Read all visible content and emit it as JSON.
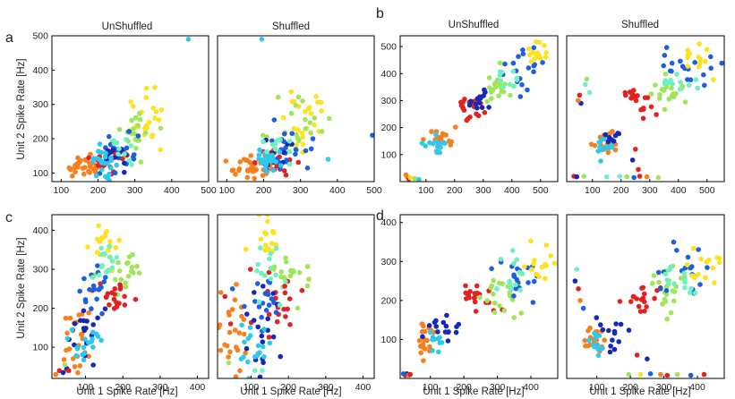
{
  "figure": {
    "panel_labels": [
      "a",
      "b",
      "c",
      "d"
    ],
    "column_titles": [
      "UnShuffled",
      "Shuffled"
    ],
    "xlabel": "Unit 1 Spike Rate [Hz]",
    "ylabel": "Unit 2 Spike Rate [Hz]"
  },
  "chart_data": [
    {
      "id": "a-unshuffled",
      "type": "scatter",
      "title": "UnShuffled",
      "xlim": [
        75,
        500
      ],
      "ylim": [
        75,
        500
      ],
      "xticks": [
        100,
        200,
        300,
        400,
        500
      ],
      "yticks": [
        100,
        200,
        300,
        400,
        500
      ],
      "clusters": [
        {
          "color": "#f77f1e",
          "cx": 165,
          "cy": 118,
          "sx": 30,
          "sy": 15,
          "n": 34
        },
        {
          "color": "#ffe11f",
          "cx": 330,
          "cy": 270,
          "sx": 30,
          "sy": 45,
          "n": 24
        },
        {
          "color": "#9fe55a",
          "cx": 300,
          "cy": 225,
          "sx": 30,
          "sy": 35,
          "n": 22
        },
        {
          "color": "#e12220",
          "cx": 235,
          "cy": 140,
          "sx": 25,
          "sy": 18,
          "n": 22
        },
        {
          "color": "#1d5fe0",
          "cx": 270,
          "cy": 160,
          "sx": 25,
          "sy": 30,
          "n": 20
        },
        {
          "color": "#1429b8",
          "cx": 250,
          "cy": 150,
          "sx": 25,
          "sy": 25,
          "n": 12
        },
        {
          "color": "#2ec8ee",
          "cx": 215,
          "cy": 135,
          "sx": 18,
          "sy": 18,
          "n": 24
        },
        {
          "color": "#6ef0c0",
          "cx": 250,
          "cy": 180,
          "sx": 25,
          "sy": 30,
          "n": 10
        }
      ],
      "outliers": [
        [
          445,
          490,
          "#2ec8ee"
        ]
      ]
    },
    {
      "id": "a-shuffled",
      "type": "scatter",
      "title": "Shuffled",
      "xlim": [
        75,
        500
      ],
      "ylim": [
        75,
        500
      ],
      "xticks": [
        100,
        200,
        300,
        400,
        500
      ],
      "yticks": [],
      "clusters": [
        {
          "color": "#f77f1e",
          "cx": 165,
          "cy": 120,
          "sx": 30,
          "sy": 18,
          "n": 34
        },
        {
          "color": "#ffe11f",
          "cx": 325,
          "cy": 265,
          "sx": 30,
          "sy": 45,
          "n": 24
        },
        {
          "color": "#9fe55a",
          "cx": 300,
          "cy": 230,
          "sx": 35,
          "sy": 40,
          "n": 22
        },
        {
          "color": "#e12220",
          "cx": 235,
          "cy": 140,
          "sx": 25,
          "sy": 20,
          "n": 22
        },
        {
          "color": "#1d5fe0",
          "cx": 260,
          "cy": 160,
          "sx": 30,
          "sy": 30,
          "n": 20
        },
        {
          "color": "#1429b8",
          "cx": 240,
          "cy": 150,
          "sx": 25,
          "sy": 25,
          "n": 12
        },
        {
          "color": "#2ec8ee",
          "cx": 210,
          "cy": 140,
          "sx": 20,
          "sy": 20,
          "n": 24
        },
        {
          "color": "#6ef0c0",
          "cx": 250,
          "cy": 175,
          "sx": 25,
          "sy": 30,
          "n": 10
        }
      ],
      "outliers": [
        [
          195,
          490,
          "#2ec8ee"
        ],
        [
          495,
          210,
          "#1d5fe0"
        ],
        [
          375,
          140,
          "#2ec8ee"
        ]
      ]
    },
    {
      "id": "b-unshuffled",
      "type": "scatter",
      "title": "UnShuffled",
      "xlim": [
        10,
        560
      ],
      "ylim": [
        0,
        540
      ],
      "xticks": [
        100,
        200,
        300,
        400,
        500
      ],
      "yticks": [
        100,
        200,
        300,
        400,
        500
      ],
      "clusters": [
        {
          "color": "#f77f1e",
          "cx": 150,
          "cy": 155,
          "sx": 22,
          "sy": 20,
          "n": 22
        },
        {
          "color": "#e12220",
          "cx": 255,
          "cy": 280,
          "sx": 25,
          "sy": 25,
          "n": 20
        },
        {
          "color": "#1429b8",
          "cx": 290,
          "cy": 305,
          "sx": 25,
          "sy": 25,
          "n": 14
        },
        {
          "color": "#1d5fe0",
          "cx": 430,
          "cy": 420,
          "sx": 45,
          "sy": 40,
          "n": 18
        },
        {
          "color": "#9fe55a",
          "cx": 360,
          "cy": 350,
          "sx": 30,
          "sy": 30,
          "n": 20
        },
        {
          "color": "#6ef0c0",
          "cx": 390,
          "cy": 375,
          "sx": 25,
          "sy": 25,
          "n": 10
        },
        {
          "color": "#ffe11f",
          "cx": 490,
          "cy": 480,
          "sx": 25,
          "sy": 25,
          "n": 14
        },
        {
          "color": "#2ec8ee",
          "cx": 130,
          "cy": 130,
          "sx": 20,
          "sy": 20,
          "n": 14
        }
      ],
      "outliers": [
        [
          35,
          18,
          "#f77f1e"
        ],
        [
          40,
          10,
          "#e12220"
        ],
        [
          45,
          15,
          "#ffe11f"
        ],
        [
          60,
          12,
          "#9fe55a"
        ],
        [
          75,
          8,
          "#2ec8ee"
        ],
        [
          30,
          25,
          "#f77f1e"
        ]
      ]
    },
    {
      "id": "b-shuffled",
      "type": "scatter",
      "title": "Shuffled",
      "xlim": [
        10,
        560
      ],
      "ylim": [
        0,
        540
      ],
      "xticks": [
        100,
        200,
        300,
        400,
        500
      ],
      "yticks": [],
      "clusters": [
        {
          "color": "#f77f1e",
          "cx": 150,
          "cy": 150,
          "sx": 20,
          "sy": 25,
          "n": 22
        },
        {
          "color": "#e12220",
          "cx": 260,
          "cy": 290,
          "sx": 30,
          "sy": 30,
          "n": 18
        },
        {
          "color": "#1d5fe0",
          "cx": 430,
          "cy": 410,
          "sx": 50,
          "sy": 50,
          "n": 18
        },
        {
          "color": "#9fe55a",
          "cx": 360,
          "cy": 340,
          "sx": 30,
          "sy": 30,
          "n": 20
        },
        {
          "color": "#6ef0c0",
          "cx": 400,
          "cy": 360,
          "sx": 25,
          "sy": 25,
          "n": 12
        },
        {
          "color": "#ffe11f",
          "cx": 480,
          "cy": 450,
          "sx": 35,
          "sy": 40,
          "n": 14
        },
        {
          "color": "#2ec8ee",
          "cx": 140,
          "cy": 130,
          "sx": 20,
          "sy": 20,
          "n": 12
        },
        {
          "color": "#1429b8",
          "cx": 160,
          "cy": 170,
          "sx": 20,
          "sy": 20,
          "n": 8
        }
      ],
      "outliers": [
        [
          55,
          320,
          "#e12220"
        ],
        [
          60,
          290,
          "#1429b8"
        ],
        [
          50,
          300,
          "#f77f1e"
        ],
        [
          75,
          360,
          "#6ef0c0"
        ],
        [
          90,
          330,
          "#6ef0c0"
        ],
        [
          80,
          380,
          "#9fe55a"
        ],
        [
          35,
          20,
          "#e12220"
        ],
        [
          45,
          18,
          "#1429b8"
        ],
        [
          70,
          20,
          "#9fe55a"
        ],
        [
          150,
          18,
          "#6ef0c0"
        ],
        [
          195,
          20,
          "#6ef0c0"
        ],
        [
          220,
          18,
          "#9fe55a"
        ],
        [
          245,
          15,
          "#1d5fe0"
        ],
        [
          265,
          20,
          "#e12220"
        ],
        [
          290,
          18,
          "#f77f1e"
        ],
        [
          330,
          15,
          "#9fe55a"
        ],
        [
          260,
          45,
          "#e12220"
        ],
        [
          240,
          80,
          "#1429b8"
        ],
        [
          250,
          120,
          "#e12220"
        ]
      ]
    },
    {
      "id": "c-unshuffled",
      "type": "scatter",
      "title": "",
      "xlim": [
        10,
        430
      ],
      "ylim": [
        20,
        440
      ],
      "xticks": [
        100,
        200,
        300,
        400
      ],
      "yticks": [
        100,
        200,
        300,
        400
      ],
      "clusters": [
        {
          "color": "#f77f1e",
          "cx": 80,
          "cy": 115,
          "sx": 20,
          "sy": 50,
          "n": 26
        },
        {
          "color": "#ffe11f",
          "cx": 150,
          "cy": 380,
          "sx": 18,
          "sy": 25,
          "n": 18
        },
        {
          "color": "#9fe55a",
          "cx": 190,
          "cy": 290,
          "sx": 30,
          "sy": 25,
          "n": 20
        },
        {
          "color": "#e12220",
          "cx": 180,
          "cy": 220,
          "sx": 25,
          "sy": 30,
          "n": 20
        },
        {
          "color": "#1d5fe0",
          "cx": 130,
          "cy": 260,
          "sx": 25,
          "sy": 35,
          "n": 18
        },
        {
          "color": "#1429b8",
          "cx": 100,
          "cy": 140,
          "sx": 20,
          "sy": 40,
          "n": 18
        },
        {
          "color": "#2ec8ee",
          "cx": 110,
          "cy": 110,
          "sx": 25,
          "sy": 30,
          "n": 18
        },
        {
          "color": "#6ef0c0",
          "cx": 150,
          "cy": 320,
          "sx": 25,
          "sy": 30,
          "n": 14
        }
      ],
      "outliers": [
        [
          30,
          40,
          "#e12220"
        ],
        [
          40,
          35,
          "#1429b8"
        ],
        [
          20,
          30,
          "#f77f1e"
        ],
        [
          50,
          45,
          "#1429b8"
        ],
        [
          45,
          55,
          "#9fe55a"
        ],
        [
          55,
          40,
          "#e12220"
        ]
      ]
    },
    {
      "id": "c-shuffled",
      "type": "scatter",
      "title": "",
      "xlim": [
        10,
        430
      ],
      "ylim": [
        20,
        440
      ],
      "xticks": [
        100,
        200,
        300,
        400
      ],
      "yticks": [],
      "clusters": [
        {
          "color": "#f77f1e",
          "cx": 60,
          "cy": 140,
          "sx": 20,
          "sy": 60,
          "n": 22
        },
        {
          "color": "#ffe11f",
          "cx": 145,
          "cy": 380,
          "sx": 18,
          "sy": 30,
          "n": 18
        },
        {
          "color": "#9fe55a",
          "cx": 200,
          "cy": 280,
          "sx": 40,
          "sy": 35,
          "n": 20
        },
        {
          "color": "#e12220",
          "cx": 175,
          "cy": 210,
          "sx": 30,
          "sy": 35,
          "n": 20
        },
        {
          "color": "#1d5fe0",
          "cx": 130,
          "cy": 240,
          "sx": 25,
          "sy": 50,
          "n": 18
        },
        {
          "color": "#1429b8",
          "cx": 130,
          "cy": 150,
          "sx": 25,
          "sy": 50,
          "n": 18
        },
        {
          "color": "#2ec8ee",
          "cx": 115,
          "cy": 90,
          "sx": 25,
          "sy": 40,
          "n": 18
        },
        {
          "color": "#6ef0c0",
          "cx": 150,
          "cy": 300,
          "sx": 25,
          "sy": 40,
          "n": 14
        }
      ],
      "outliers": [
        [
          30,
          230,
          "#e12220"
        ],
        [
          40,
          190,
          "#f77f1e"
        ],
        [
          45,
          160,
          "#e12220"
        ],
        [
          50,
          250,
          "#1d5fe0"
        ],
        [
          60,
          100,
          "#f77f1e"
        ],
        [
          70,
          40,
          "#f77f1e"
        ],
        [
          40,
          60,
          "#9fe55a"
        ],
        [
          110,
          40,
          "#6ef0c0"
        ],
        [
          130,
          40,
          "#6ef0c0"
        ]
      ]
    },
    {
      "id": "d-unshuffled",
      "type": "scatter",
      "title": "",
      "xlim": [
        10,
        480
      ],
      "ylim": [
        0,
        420
      ],
      "xticks": [
        100,
        200,
        300,
        400
      ],
      "yticks": [
        100,
        200,
        300,
        400
      ],
      "clusters": [
        {
          "color": "#f77f1e",
          "cx": 90,
          "cy": 100,
          "sx": 15,
          "sy": 20,
          "n": 22
        },
        {
          "color": "#1429b8",
          "cx": 140,
          "cy": 125,
          "sx": 25,
          "sy": 20,
          "n": 16
        },
        {
          "color": "#e12220",
          "cx": 245,
          "cy": 200,
          "sx": 25,
          "sy": 20,
          "n": 20
        },
        {
          "color": "#9fe55a",
          "cx": 300,
          "cy": 220,
          "sx": 35,
          "sy": 30,
          "n": 20
        },
        {
          "color": "#1d5fe0",
          "cx": 370,
          "cy": 270,
          "sx": 35,
          "sy": 30,
          "n": 18
        },
        {
          "color": "#6ef0c0",
          "cx": 340,
          "cy": 260,
          "sx": 30,
          "sy": 30,
          "n": 14
        },
        {
          "color": "#ffe11f",
          "cx": 420,
          "cy": 290,
          "sx": 30,
          "sy": 35,
          "n": 14
        },
        {
          "color": "#2ec8ee",
          "cx": 100,
          "cy": 90,
          "sx": 15,
          "sy": 15,
          "n": 10
        }
      ],
      "outliers": [
        [
          25,
          8,
          "#e12220"
        ],
        [
          30,
          12,
          "#1429b8"
        ],
        [
          35,
          8,
          "#f77f1e"
        ],
        [
          20,
          12,
          "#1d5fe0"
        ],
        [
          40,
          10,
          "#e12220"
        ]
      ]
    },
    {
      "id": "d-shuffled",
      "type": "scatter",
      "title": "",
      "xlim": [
        10,
        480
      ],
      "ylim": [
        0,
        420
      ],
      "xticks": [
        100,
        200,
        300,
        400
      ],
      "yticks": [],
      "clusters": [
        {
          "color": "#f77f1e",
          "cx": 95,
          "cy": 100,
          "sx": 15,
          "sy": 20,
          "n": 22
        },
        {
          "color": "#1429b8",
          "cx": 150,
          "cy": 130,
          "sx": 25,
          "sy": 25,
          "n": 14
        },
        {
          "color": "#e12220",
          "cx": 250,
          "cy": 200,
          "sx": 25,
          "sy": 20,
          "n": 18
        },
        {
          "color": "#9fe55a",
          "cx": 320,
          "cy": 230,
          "sx": 30,
          "sy": 30,
          "n": 20
        },
        {
          "color": "#1d5fe0",
          "cx": 370,
          "cy": 270,
          "sx": 35,
          "sy": 35,
          "n": 18
        },
        {
          "color": "#6ef0c0",
          "cx": 340,
          "cy": 260,
          "sx": 30,
          "sy": 30,
          "n": 14
        },
        {
          "color": "#ffe11f",
          "cx": 420,
          "cy": 280,
          "sx": 30,
          "sy": 35,
          "n": 14
        },
        {
          "color": "#2ec8ee",
          "cx": 105,
          "cy": 90,
          "sx": 15,
          "sy": 15,
          "n": 10
        }
      ],
      "outliers": [
        [
          40,
          280,
          "#6ef0c0"
        ],
        [
          45,
          230,
          "#e12220"
        ],
        [
          50,
          200,
          "#f77f1e"
        ],
        [
          35,
          250,
          "#1429b8"
        ],
        [
          60,
          180,
          "#1d5fe0"
        ],
        [
          195,
          10,
          "#9fe55a"
        ],
        [
          230,
          10,
          "#ffe11f"
        ],
        [
          260,
          12,
          "#1d5fe0"
        ],
        [
          290,
          10,
          "#f77f1e"
        ],
        [
          310,
          8,
          "#e12220"
        ],
        [
          340,
          10,
          "#9fe55a"
        ],
        [
          380,
          8,
          "#1d5fe0"
        ],
        [
          420,
          10,
          "#e12220"
        ],
        [
          220,
          60,
          "#e12220"
        ],
        [
          250,
          50,
          "#1429b8"
        ]
      ]
    }
  ]
}
